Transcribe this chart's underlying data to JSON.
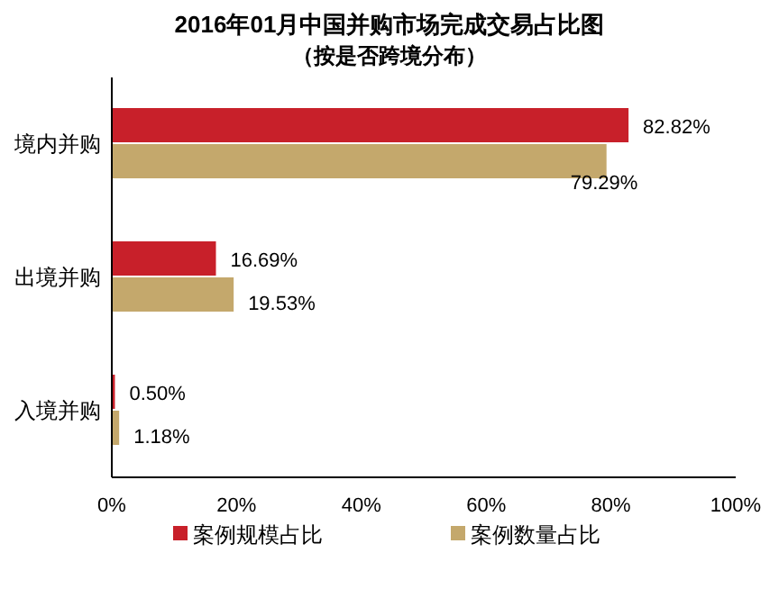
{
  "chart_data": {
    "type": "bar",
    "orientation": "horizontal",
    "title": "2016年01月中国并购市场完成交易占比图",
    "subtitle": "（按是否跨境分布）",
    "categories": [
      "境内并购",
      "出境并购",
      "入境并购"
    ],
    "series": [
      {
        "name": "案例规模占比",
        "color": "#c8202a",
        "values": [
          82.82,
          16.69,
          0.5
        ],
        "value_labels": [
          "82.82%",
          "16.69%",
          "0.50%"
        ]
      },
      {
        "name": "案例数量占比",
        "color": "#c4a86c",
        "values": [
          79.29,
          19.53,
          1.18
        ],
        "value_labels": [
          "79.29%",
          "19.53%",
          "1.18%"
        ]
      }
    ],
    "xlim": [
      0,
      100
    ],
    "xticks": [
      {
        "value": 0,
        "label": "0%"
      },
      {
        "value": 20,
        "label": "20%"
      },
      {
        "value": 40,
        "label": "40%"
      },
      {
        "value": 60,
        "label": "60%"
      },
      {
        "value": 80,
        "label": "80%"
      },
      {
        "value": 100,
        "label": "100%"
      }
    ],
    "grid": false,
    "legend": "bottom"
  }
}
